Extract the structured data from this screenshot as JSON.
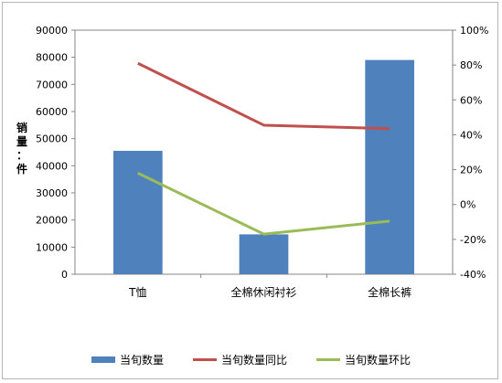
{
  "chart_data": {
    "type": "bar",
    "categories": [
      "T恤",
      "全棉休闲衬衫",
      "全棉长裤"
    ],
    "series": [
      {
        "name": "当旬数量",
        "type": "bar",
        "axis": "left",
        "values": [
          45500,
          14700,
          79000
        ],
        "color": "#4f81bd"
      },
      {
        "name": "当旬数量同比",
        "type": "line",
        "axis": "right",
        "values": [
          0.81,
          0.455,
          0.435
        ],
        "color": "#c0504d"
      },
      {
        "name": "当旬数量环比",
        "type": "line",
        "axis": "right",
        "values": [
          0.18,
          -0.17,
          -0.095
        ],
        "color": "#9bbb59"
      }
    ],
    "ylabel_chars": [
      "销",
      "量",
      "：",
      "件"
    ],
    "ylim": [
      0,
      90000
    ],
    "y_ticks": [
      "0",
      "10000",
      "20000",
      "30000",
      "40000",
      "50000",
      "60000",
      "70000",
      "80000",
      "90000"
    ],
    "y2lim": [
      -0.4,
      1.0
    ],
    "y2_ticks": [
      "-40%",
      "-20%",
      "0%",
      "20%",
      "40%",
      "60%",
      "80%",
      "100%"
    ],
    "legend_position": "bottom",
    "grid": false
  }
}
